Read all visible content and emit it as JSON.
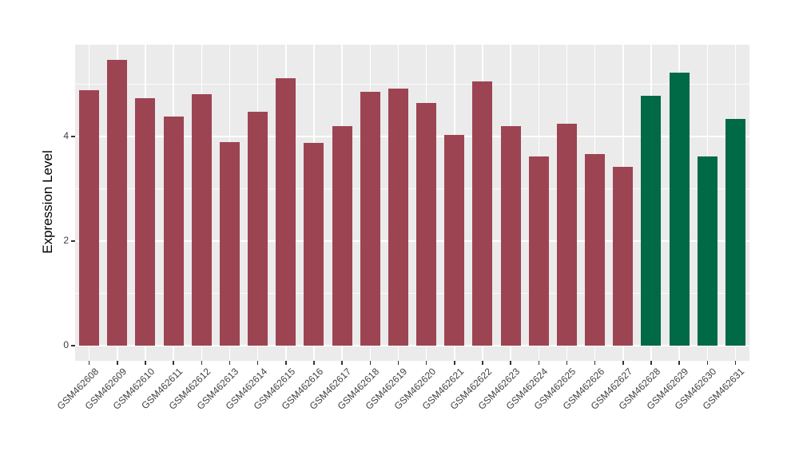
{
  "figure_background": "#FFFFFF",
  "chart_data": {
    "type": "bar",
    "title": "",
    "xlabel": "",
    "ylabel": "Expression Level",
    "categories": [
      "GSM462608",
      "GSM462609",
      "GSM462610",
      "GSM462611",
      "GSM462612",
      "GSM462613",
      "GSM462614",
      "GSM462615",
      "GSM462616",
      "GSM462617",
      "GSM462618",
      "GSM462619",
      "GSM462620",
      "GSM462621",
      "GSM462622",
      "GSM462623",
      "GSM462624",
      "GSM462625",
      "GSM462626",
      "GSM462627",
      "GSM462628",
      "GSM462629",
      "GSM462630",
      "GSM462631"
    ],
    "values": [
      4.88,
      5.47,
      4.73,
      4.38,
      4.81,
      3.9,
      4.47,
      5.12,
      3.88,
      4.2,
      4.86,
      4.92,
      4.64,
      4.03,
      5.06,
      4.2,
      3.62,
      4.24,
      3.67,
      3.42,
      4.78,
      5.22,
      3.62,
      4.33
    ],
    "bar_colors": [
      "#9D4453",
      "#9D4453",
      "#9D4453",
      "#9D4453",
      "#9D4453",
      "#9D4453",
      "#9D4453",
      "#9D4453",
      "#9D4453",
      "#9D4453",
      "#9D4453",
      "#9D4453",
      "#9D4453",
      "#9D4453",
      "#9D4453",
      "#9D4453",
      "#9D4453",
      "#9D4453",
      "#9D4453",
      "#9D4453",
      "#006945",
      "#006945",
      "#006945",
      "#006945"
    ],
    "palette": {
      "maroon": "#9D4453",
      "green": "#006945"
    },
    "ytick_labels": [
      "0",
      "2",
      "4"
    ],
    "ytick_values": [
      0,
      2,
      4
    ],
    "minor_gridlines": [
      1,
      3,
      5
    ],
    "ylim": [
      -0.29,
      5.75
    ],
    "x_tick_rotation_deg": 45,
    "grid": true,
    "legend": "none",
    "plot_background": "#EBEBEB",
    "gridline_color": "#FFFFFF",
    "tick_color": "#333333",
    "tick_label_color": "#404040",
    "axis_title_color": "#000000"
  }
}
